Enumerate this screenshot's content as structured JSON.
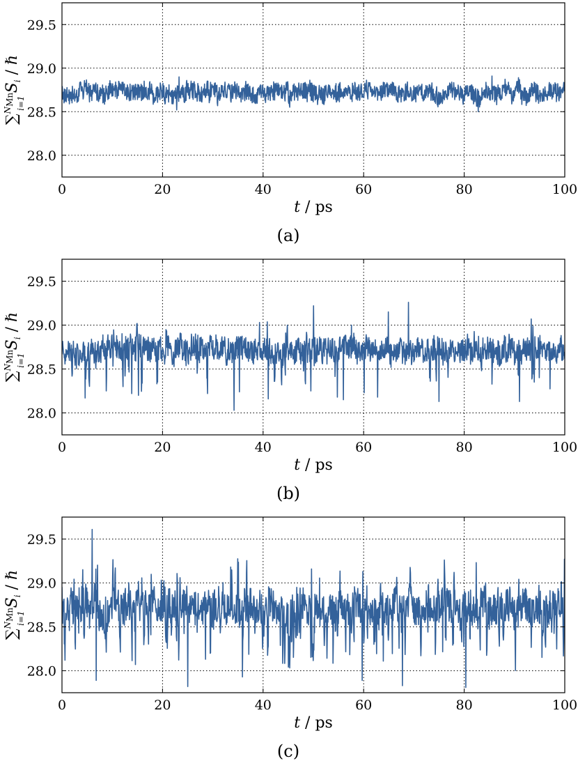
{
  "chart_data": [
    {
      "type": "line",
      "panel_label": "(a)",
      "xlabel": {
        "var": "t",
        "unit": "ps",
        "sep": " / "
      },
      "ylabel": {
        "sum": "∑",
        "sub": "i=1",
        "sup": "N",
        "sup_sub": "Mn",
        "term": "S",
        "term_sub": "i",
        "sep": " / ",
        "unit": "ℏ"
      },
      "xlim": [
        0,
        100
      ],
      "ylim": [
        27.75,
        29.75
      ],
      "xticks": [
        "0",
        "20",
        "40",
        "60",
        "80",
        "100"
      ],
      "yticks": [
        "28.0",
        "28.5",
        "29.0",
        "29.5"
      ],
      "grid": true,
      "series_color": "#33619a",
      "signal": {
        "mean": 28.72,
        "band": 0.1,
        "noise": 0.05,
        "dip_rate": 0.0,
        "dip_depth": 0.0,
        "spike_rate": 0.0,
        "spike_height": 0.0,
        "n": 1500,
        "seed": 11
      },
      "notable_points": [
        {
          "x": 23.3,
          "y": 28.9
        },
        {
          "x": 22.8,
          "y": 28.52
        },
        {
          "x": 82.8,
          "y": 28.5
        },
        {
          "x": 85.5,
          "y": 28.91
        }
      ]
    },
    {
      "type": "line",
      "panel_label": "(b)",
      "xlabel": {
        "var": "t",
        "unit": "ps",
        "sep": " / "
      },
      "ylabel": {
        "sum": "∑",
        "sub": "i=1",
        "sup": "N",
        "sup_sub": "Mn",
        "term": "S",
        "term_sub": "i",
        "sep": " / ",
        "unit": "ℏ"
      },
      "xlim": [
        0,
        100
      ],
      "ylim": [
        27.75,
        29.75
      ],
      "xticks": [
        "0",
        "20",
        "40",
        "60",
        "80",
        "100"
      ],
      "yticks": [
        "28.0",
        "28.5",
        "29.0",
        "29.5"
      ],
      "grid": true,
      "series_color": "#33619a",
      "signal": {
        "mean": 28.72,
        "band": 0.14,
        "noise": 0.06,
        "dip_rate": 0.02,
        "dip_depth": 0.35,
        "spike_rate": 0.004,
        "spike_height": 0.25,
        "n": 1500,
        "seed": 23
      },
      "notable_points": [
        {
          "x": 4.6,
          "y": 28.17
        },
        {
          "x": 13.9,
          "y": 28.22
        },
        {
          "x": 15.2,
          "y": 28.2
        },
        {
          "x": 34.2,
          "y": 28.03
        },
        {
          "x": 35.3,
          "y": 28.24
        },
        {
          "x": 39.3,
          "y": 29.03
        },
        {
          "x": 41.0,
          "y": 28.16
        },
        {
          "x": 50.0,
          "y": 29.22
        },
        {
          "x": 49.5,
          "y": 28.25
        },
        {
          "x": 54.8,
          "y": 28.18
        },
        {
          "x": 56.0,
          "y": 28.15
        },
        {
          "x": 57.6,
          "y": 29.0
        },
        {
          "x": 60.1,
          "y": 28.23
        },
        {
          "x": 62.8,
          "y": 28.18
        },
        {
          "x": 64.9,
          "y": 29.15
        },
        {
          "x": 68.9,
          "y": 29.26
        },
        {
          "x": 75.0,
          "y": 28.13
        },
        {
          "x": 91.0,
          "y": 28.13
        },
        {
          "x": 93.3,
          "y": 29.07
        }
      ]
    },
    {
      "type": "line",
      "panel_label": "(c)",
      "xlabel": {
        "var": "t",
        "unit": "ps",
        "sep": " / "
      },
      "ylabel": {
        "sum": "∑",
        "sub": "i=1",
        "sup": "N",
        "sup_sub": "Mn",
        "term": "S",
        "term_sub": "i",
        "sep": " / ",
        "unit": "ℏ"
      },
      "xlim": [
        0,
        100
      ],
      "ylim": [
        27.75,
        29.75
      ],
      "xticks": [
        "0",
        "20",
        "40",
        "60",
        "80",
        "100"
      ],
      "yticks": [
        "28.0",
        "28.5",
        "29.0",
        "29.5"
      ],
      "grid": true,
      "series_color": "#33619a",
      "signal": {
        "mean": 28.72,
        "band": 0.18,
        "noise": 0.1,
        "dip_rate": 0.06,
        "dip_depth": 0.45,
        "spike_rate": 0.05,
        "spike_height": 0.35,
        "n": 1500,
        "seed": 37
      },
      "notable_points": [
        {
          "x": 6.0,
          "y": 29.61
        },
        {
          "x": 6.8,
          "y": 27.89
        },
        {
          "x": 25.0,
          "y": 27.82
        },
        {
          "x": 35.9,
          "y": 27.93
        },
        {
          "x": 59.7,
          "y": 27.89
        },
        {
          "x": 67.7,
          "y": 27.83
        },
        {
          "x": 80.3,
          "y": 27.81
        },
        {
          "x": 99.9,
          "y": 29.27
        }
      ]
    }
  ]
}
